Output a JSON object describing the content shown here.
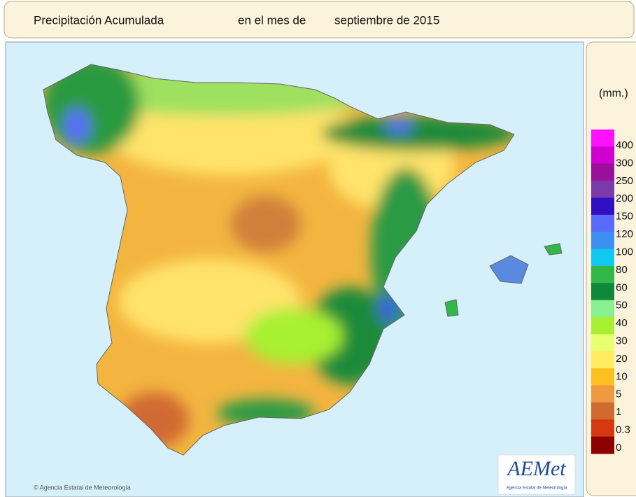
{
  "header": {
    "title": "Precipitación Acumulada",
    "period_prefix": "en el mes de",
    "period": "septiembre de 2015"
  },
  "legend": {
    "unit": "(mm.)",
    "colors": [
      "#ff10ff",
      "#d000d0",
      "#9a109a",
      "#7a3aa8",
      "#3010c0",
      "#5a6aff",
      "#3c90f0",
      "#10c8f0",
      "#30b848",
      "#10883a",
      "#88f090",
      "#a8f030",
      "#e8ff70",
      "#ffec60",
      "#ffc020",
      "#f09a40",
      "#d06a30",
      "#d83810",
      "#8c0000"
    ],
    "labels": [
      "400",
      "300",
      "250",
      "200",
      "150",
      "120",
      "100",
      "80",
      "60",
      "50",
      "40",
      "30",
      "20",
      "10",
      "5",
      "1",
      "0.3",
      "0"
    ]
  },
  "credit": "© Agencia Estatal de Meteorología",
  "logo": {
    "name": "AEMet",
    "subtitle": "Agencia Estatal de Meteorología"
  }
}
